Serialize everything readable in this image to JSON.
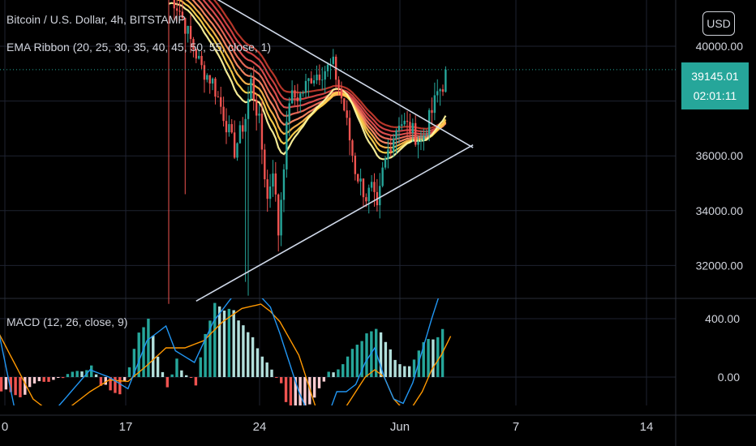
{
  "header": {
    "symbol_title": "Bitcoin / U.S. Dollar, 4h, BITSTAMP",
    "ema_label": "EMA Ribbon (20, 25, 30, 35, 40, 45, 50, 55, close, 1)",
    "macd_label": "MACD (12, 26, close, 9)",
    "currency_button": "USD"
  },
  "price_tag": {
    "price": "39145.01",
    "countdown": "02:01:11"
  },
  "colors": {
    "up": "#26a69a",
    "down": "#ef5350",
    "up_light": "#b2dfdb",
    "down_light": "#ffcdd2",
    "trendline": "#cfd8e8",
    "macd_line": "#2196f3",
    "signal_line": "#ff9800",
    "ribbon": [
      "#fff59d",
      "#ffd54f",
      "#ffb74d",
      "#ff8a65",
      "#ef6c5a",
      "#e55050",
      "#d84343",
      "#c0392b"
    ]
  },
  "chart_data": [
    {
      "type": "candlestick",
      "title": "Bitcoin / U.S. Dollar, 4h, BITSTAMP",
      "x_ticks": [
        "0",
        "17",
        "24",
        "Jun",
        "7",
        "14"
      ],
      "y_ticks": [
        "40000.00",
        "36000.00",
        "34000.00",
        "32000.00"
      ],
      "ylim": [
        30600,
        41600
      ],
      "last_price": 39145.01,
      "price_segments": [
        [
          0,
          42000
        ],
        [
          4,
          41300
        ],
        [
          8,
          40200
        ],
        [
          12,
          39200
        ],
        [
          16,
          38700
        ],
        [
          20,
          37500
        ],
        [
          24,
          36200
        ],
        [
          28,
          37400
        ],
        [
          30,
          38700
        ],
        [
          33,
          37200
        ],
        [
          36,
          34400
        ],
        [
          38,
          35600
        ],
        [
          40,
          33200
        ],
        [
          42,
          35800
        ],
        [
          44,
          38100
        ],
        [
          48,
          38200
        ],
        [
          52,
          38900
        ],
        [
          56,
          39100
        ],
        [
          60,
          39300
        ],
        [
          64,
          37700
        ],
        [
          68,
          35500
        ],
        [
          72,
          34500
        ],
        [
          74,
          34800
        ],
        [
          76,
          33900
        ],
        [
          78,
          35400
        ],
        [
          80,
          36200
        ],
        [
          84,
          37300
        ],
        [
          88,
          37000
        ],
        [
          92,
          36500
        ],
        [
          96,
          37600
        ],
        [
          98,
          38300
        ],
        [
          100,
          38600
        ],
        [
          101,
          39150
        ]
      ],
      "ribbon": {
        "periods": [
          20,
          25,
          30,
          35,
          40,
          45,
          50,
          55
        ],
        "end_values": [
          36900,
          37000,
          37100,
          37200,
          37300,
          37400,
          37500,
          37600
        ]
      },
      "triangle": {
        "upper": [
          [
            -20,
            43900
          ],
          [
            111,
            36300
          ]
        ],
        "lower": [
          [
            10,
            30700
          ],
          [
            111,
            36400
          ]
        ]
      }
    },
    {
      "type": "macd",
      "title": "MACD (12, 26, close, 9)",
      "y_ticks": [
        "400.00",
        "0.00"
      ],
      "histogram_segments": [
        [
          0,
          -80
        ],
        [
          5,
          -140
        ],
        [
          8,
          -30
        ],
        [
          12,
          -20
        ],
        [
          16,
          30
        ],
        [
          20,
          80
        ],
        [
          22,
          -40
        ],
        [
          26,
          -110
        ],
        [
          28,
          60
        ],
        [
          30,
          290
        ],
        [
          32,
          420
        ],
        [
          34,
          120
        ],
        [
          36,
          -80
        ],
        [
          38,
          110
        ],
        [
          40,
          20
        ],
        [
          42,
          -40
        ],
        [
          44,
          300
        ],
        [
          46,
          490
        ],
        [
          50,
          450
        ],
        [
          54,
          280
        ],
        [
          56,
          150
        ],
        [
          58,
          50
        ],
        [
          60,
          -60
        ],
        [
          62,
          -250
        ],
        [
          66,
          -180
        ],
        [
          70,
          40
        ],
        [
          72,
          40
        ],
        [
          74,
          140
        ],
        [
          78,
          290
        ],
        [
          80,
          340
        ],
        [
          82,
          250
        ],
        [
          84,
          120
        ],
        [
          86,
          60
        ],
        [
          88,
          120
        ],
        [
          90,
          250
        ],
        [
          92,
          250
        ],
        [
          94,
          320
        ]
      ],
      "macd_line_points": [
        [
          0,
          430
        ],
        [
          4,
          -200
        ],
        [
          8,
          -300
        ],
        [
          12,
          -250
        ],
        [
          16,
          -100
        ],
        [
          20,
          50
        ],
        [
          24,
          0
        ],
        [
          28,
          -80
        ],
        [
          32,
          250
        ],
        [
          36,
          350
        ],
        [
          38,
          180
        ],
        [
          42,
          100
        ],
        [
          46,
          380
        ],
        [
          50,
          550
        ],
        [
          54,
          600
        ],
        [
          56,
          550
        ],
        [
          58,
          480
        ],
        [
          60,
          300
        ],
        [
          64,
          -100
        ],
        [
          66,
          -250
        ],
        [
          68,
          -300
        ],
        [
          70,
          -280
        ],
        [
          72,
          -100
        ],
        [
          74,
          -100
        ],
        [
          76,
          -50
        ],
        [
          78,
          100
        ],
        [
          80,
          200
        ],
        [
          82,
          0
        ],
        [
          84,
          -150
        ],
        [
          86,
          -180
        ],
        [
          88,
          -40
        ],
        [
          90,
          180
        ],
        [
          92,
          400
        ],
        [
          94,
          600
        ],
        [
          96,
          800
        ]
      ],
      "signal_line_points": [
        [
          0,
          350
        ],
        [
          4,
          100
        ],
        [
          8,
          -150
        ],
        [
          12,
          -250
        ],
        [
          16,
          -200
        ],
        [
          20,
          -100
        ],
        [
          24,
          -20
        ],
        [
          28,
          -30
        ],
        [
          32,
          80
        ],
        [
          36,
          200
        ],
        [
          40,
          200
        ],
        [
          44,
          250
        ],
        [
          48,
          380
        ],
        [
          52,
          470
        ],
        [
          56,
          500
        ],
        [
          58,
          450
        ],
        [
          60,
          380
        ],
        [
          64,
          150
        ],
        [
          66,
          -50
        ],
        [
          68,
          -250
        ],
        [
          70,
          -300
        ],
        [
          72,
          -290
        ],
        [
          74,
          -200
        ],
        [
          76,
          -100
        ],
        [
          78,
          0
        ],
        [
          80,
          50
        ],
        [
          82,
          0
        ],
        [
          84,
          -150
        ],
        [
          86,
          -220
        ],
        [
          88,
          -200
        ],
        [
          90,
          -100
        ],
        [
          92,
          50
        ],
        [
          94,
          150
        ],
        [
          96,
          280
        ]
      ]
    }
  ]
}
